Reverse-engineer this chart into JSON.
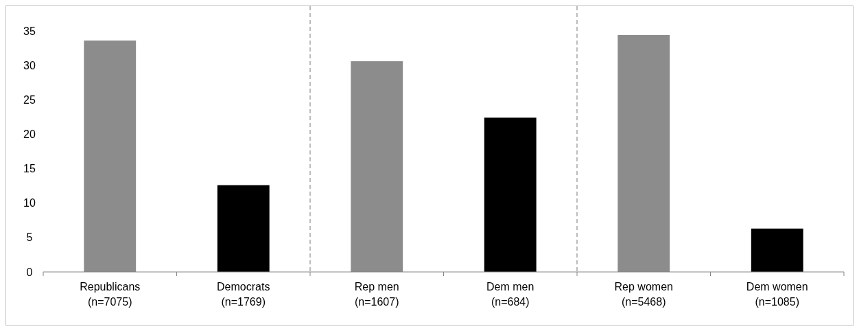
{
  "chart_data": {
    "type": "bar",
    "categories": [
      "Republicans\n(n=7075)",
      "Democrats\n(n=1769)",
      "Rep men\n(n=1607)",
      "Dem men\n(n=684)",
      "Rep women\n(n=5468)",
      "Dem women\n(n=1085)"
    ],
    "values": [
      33.6,
      12.6,
      30.6,
      22.4,
      34.4,
      6.3
    ],
    "colors": [
      "#8c8c8c",
      "#000000",
      "#8c8c8c",
      "#000000",
      "#8c8c8c",
      "#000000"
    ],
    "ylim": [
      0,
      35
    ],
    "yticks": [
      0,
      5,
      10,
      15,
      20,
      25,
      30,
      35
    ],
    "grid": false
  }
}
